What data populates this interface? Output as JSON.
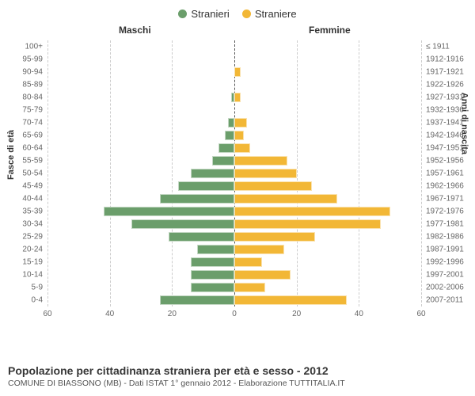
{
  "legend": {
    "male_label": "Stranieri",
    "female_label": "Straniere"
  },
  "header": {
    "male_title": "Maschi",
    "female_title": "Femmine"
  },
  "axis": {
    "left_title": "Fasce di età",
    "right_title": "Anni di nascita",
    "xmax": 60,
    "xticks_left": [
      60,
      40,
      20,
      0
    ],
    "xticks_right": [
      0,
      20,
      40,
      60
    ]
  },
  "colors": {
    "male": "#6b9e6b",
    "female": "#f2b736",
    "grid": "#cccccc",
    "center": "#555555",
    "bg": "#ffffff"
  },
  "style": {
    "bar_height_ratio": 0.76,
    "label_fontsize": 10,
    "axis_fontsize": 10,
    "legend_fontsize": 13,
    "header_fontsize": 12,
    "title_fontsize": 14,
    "source_fontsize": 10.5
  },
  "rows": [
    {
      "age": "100+",
      "male": 0,
      "female": 0,
      "birth": "≤ 1911"
    },
    {
      "age": "95-99",
      "male": 0,
      "female": 0,
      "birth": "1912-1916"
    },
    {
      "age": "90-94",
      "male": 0,
      "female": 2,
      "birth": "1917-1921"
    },
    {
      "age": "85-89",
      "male": 0,
      "female": 0,
      "birth": "1922-1926"
    },
    {
      "age": "80-84",
      "male": 1,
      "female": 2,
      "birth": "1927-1931"
    },
    {
      "age": "75-79",
      "male": 0,
      "female": 0,
      "birth": "1932-1936"
    },
    {
      "age": "70-74",
      "male": 2,
      "female": 4,
      "birth": "1937-1941"
    },
    {
      "age": "65-69",
      "male": 3,
      "female": 3,
      "birth": "1942-1946"
    },
    {
      "age": "60-64",
      "male": 5,
      "female": 5,
      "birth": "1947-1951"
    },
    {
      "age": "55-59",
      "male": 7,
      "female": 17,
      "birth": "1952-1956"
    },
    {
      "age": "50-54",
      "male": 14,
      "female": 20,
      "birth": "1957-1961"
    },
    {
      "age": "45-49",
      "male": 18,
      "female": 25,
      "birth": "1962-1966"
    },
    {
      "age": "40-44",
      "male": 24,
      "female": 33,
      "birth": "1967-1971"
    },
    {
      "age": "35-39",
      "male": 42,
      "female": 50,
      "birth": "1972-1976"
    },
    {
      "age": "30-34",
      "male": 33,
      "female": 47,
      "birth": "1977-1981"
    },
    {
      "age": "25-29",
      "male": 21,
      "female": 26,
      "birth": "1982-1986"
    },
    {
      "age": "20-24",
      "male": 12,
      "female": 16,
      "birth": "1987-1991"
    },
    {
      "age": "15-19",
      "male": 14,
      "female": 9,
      "birth": "1992-1996"
    },
    {
      "age": "10-14",
      "male": 14,
      "female": 18,
      "birth": "1997-2001"
    },
    {
      "age": "5-9",
      "male": 14,
      "female": 10,
      "birth": "2002-2006"
    },
    {
      "age": "0-4",
      "male": 24,
      "female": 36,
      "birth": "2007-2011"
    }
  ],
  "footer": {
    "title": "Popolazione per cittadinanza straniera per età e sesso - 2012",
    "source": "COMUNE DI BIASSONO (MB) - Dati ISTAT 1° gennaio 2012 - Elaborazione TUTTITALIA.IT"
  }
}
